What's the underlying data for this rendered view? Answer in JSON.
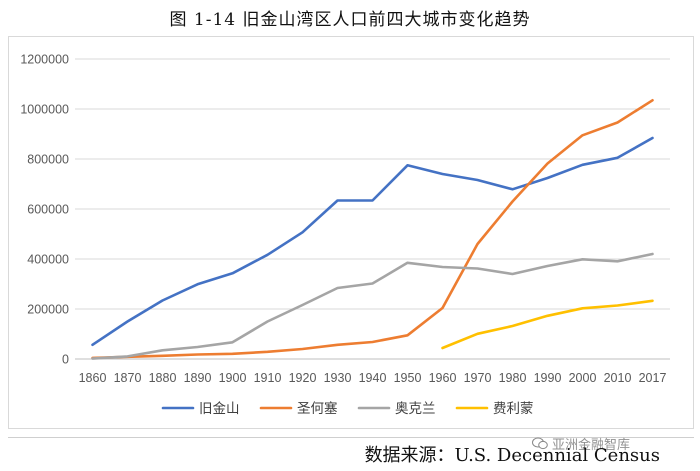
{
  "title": "图 1-14   旧金山湾区人口前四大城市变化趋势",
  "source": "数据来源：U.S. Decennial Census",
  "watermark": "亚洲金融智库",
  "chart_data": {
    "type": "line",
    "x": [
      "1860",
      "1870",
      "1880",
      "1890",
      "1900",
      "1910",
      "1920",
      "1930",
      "1940",
      "1950",
      "1960",
      "1970",
      "1980",
      "1990",
      "2000",
      "2010",
      "2017"
    ],
    "ylim": [
      0,
      1200000
    ],
    "yticks": [
      0,
      200000,
      400000,
      600000,
      800000,
      1000000,
      1200000
    ],
    "ytick_labels": [
      "0",
      "200000",
      "400000",
      "600000",
      "800000",
      "1000000",
      "1200000"
    ],
    "grid": true,
    "legend_position": "bottom",
    "series": [
      {
        "name": "旧金山",
        "color": "#4472C4",
        "values": [
          57000,
          150000,
          234000,
          299000,
          343000,
          417000,
          507000,
          634000,
          634000,
          775000,
          740000,
          716000,
          679000,
          724000,
          777000,
          805000,
          884000
        ]
      },
      {
        "name": "圣何塞",
        "color": "#ED7D31",
        "values": [
          4600,
          9000,
          13000,
          18000,
          21000,
          29000,
          40000,
          57000,
          68000,
          95000,
          204000,
          460000,
          630000,
          782000,
          895000,
          946000,
          1035000
        ]
      },
      {
        "name": "奥克兰",
        "color": "#A5A5A5",
        "values": [
          1500,
          10500,
          35000,
          48000,
          67000,
          150000,
          216000,
          284000,
          302000,
          385000,
          368000,
          362000,
          340000,
          372000,
          399000,
          391000,
          420000
        ]
      },
      {
        "name": "费利蒙",
        "color": "#FFC000",
        "values": [
          null,
          null,
          null,
          null,
          null,
          null,
          null,
          null,
          null,
          null,
          44000,
          101000,
          132000,
          173000,
          203000,
          214000,
          233000
        ]
      }
    ]
  }
}
